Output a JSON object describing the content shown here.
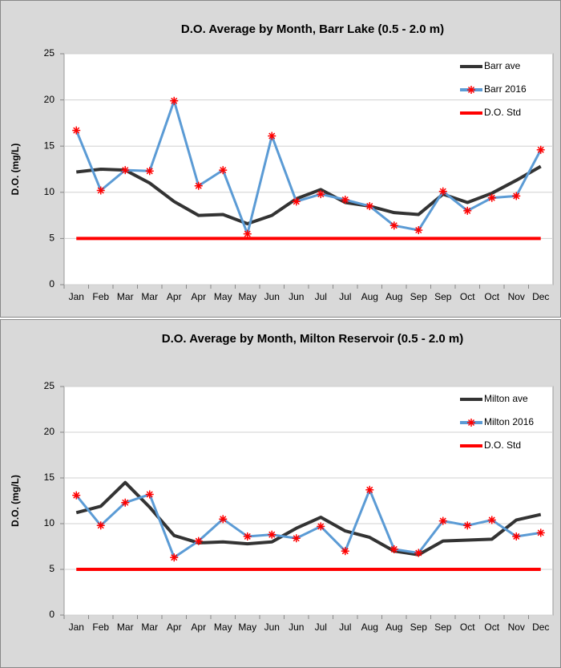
{
  "chart_data": [
    {
      "type": "line",
      "title": "D.O. Average by Month, Barr Lake (0.5 - 2.0 m)",
      "y_label": "D.O. (mg/L)",
      "categories": [
        "Jan",
        "Feb",
        "Mar",
        "Mar",
        "Apr",
        "Apr",
        "May",
        "May",
        "Jun",
        "Jun",
        "Jul",
        "Jul",
        "Aug",
        "Aug",
        "Sep",
        "Sep",
        "Oct",
        "Oct",
        "Nov",
        "Dec"
      ],
      "series": [
        {
          "name": "Barr ave",
          "color": "#333333",
          "values": [
            12.2,
            12.5,
            12.4,
            11,
            9,
            7.5,
            7.6,
            6.6,
            7.5,
            9.3,
            10.3,
            8.9,
            8.5,
            7.8,
            7.6,
            9.8,
            8.9,
            9.9,
            11.3,
            12.8
          ]
        },
        {
          "name": "Barr 2016",
          "color": "#5b9bd5",
          "marker": "asterisk",
          "marker_color": "#ff0000",
          "values": [
            16.7,
            10.2,
            12.4,
            12.3,
            19.9,
            10.7,
            12.4,
            5.5,
            16.1,
            9.0,
            9.8,
            9.2,
            8.5,
            6.4,
            5.9,
            10.1,
            8.0,
            9.4,
            9.6,
            14.6
          ]
        },
        {
          "name": "D.O. Std",
          "color": "#ff0000",
          "values": [
            5,
            5,
            5,
            5,
            5,
            5,
            5,
            5,
            5,
            5,
            5,
            5,
            5,
            5,
            5,
            5,
            5,
            5,
            5,
            5
          ]
        }
      ],
      "ylim": [
        0,
        25
      ],
      "yticks": [
        0,
        5,
        10,
        15,
        20,
        25
      ],
      "grid": true,
      "legend": "top-right"
    },
    {
      "type": "line",
      "title": "D.O. Average by Month, Milton Reservoir (0.5 - 2.0 m)",
      "y_label": "D.O. (mg/L)",
      "categories": [
        "Jan",
        "Feb",
        "Mar",
        "Mar",
        "Apr",
        "Apr",
        "May",
        "May",
        "Jun",
        "Jun",
        "Jul",
        "Jul",
        "Aug",
        "Aug",
        "Sep",
        "Sep",
        "Oct",
        "Oct",
        "Nov",
        "Dec"
      ],
      "series": [
        {
          "name": "Milton ave",
          "color": "#333333",
          "values": [
            11.2,
            11.9,
            14.5,
            11.8,
            8.7,
            7.9,
            8.0,
            7.8,
            8.0,
            9.5,
            10.7,
            9.2,
            8.5,
            7.0,
            6.6,
            8.1,
            8.2,
            8.3,
            10.4,
            11.0
          ]
        },
        {
          "name": "Milton 2016",
          "color": "#5b9bd5",
          "marker": "asterisk",
          "marker_color": "#ff0000",
          "values": [
            13.1,
            9.8,
            12.3,
            13.2,
            6.3,
            8.1,
            10.5,
            8.6,
            8.8,
            8.4,
            9.7,
            7.0,
            13.7,
            7.2,
            6.8,
            10.3,
            9.8,
            10.4,
            8.6,
            9.0
          ]
        },
        {
          "name": "D.O. Std",
          "color": "#ff0000",
          "values": [
            5,
            5,
            5,
            5,
            5,
            5,
            5,
            5,
            5,
            5,
            5,
            5,
            5,
            5,
            5,
            5,
            5,
            5,
            5,
            5
          ]
        }
      ],
      "ylim": [
        0,
        25
      ],
      "yticks": [
        0,
        5,
        10,
        15,
        20,
        25
      ],
      "grid": true,
      "legend": "top-right"
    }
  ]
}
